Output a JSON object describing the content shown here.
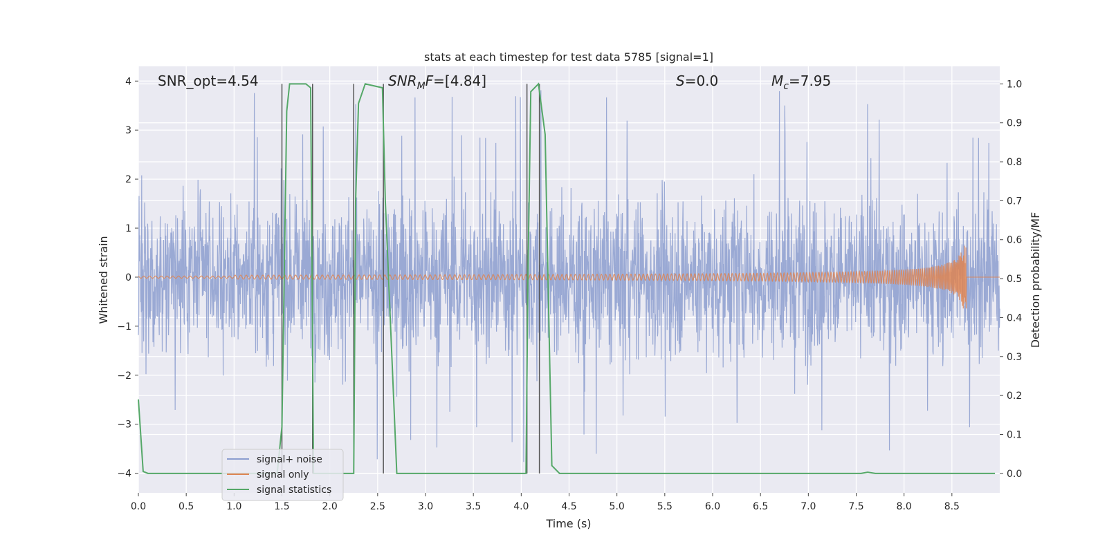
{
  "chart_data": {
    "type": "line",
    "title": "stats at each timestep for test data 5785 [signal=1]",
    "xlabel": "Time (s)",
    "ylabel_left": "Whitened strain",
    "ylabel_right": "Detection probability/MF",
    "xlim": [
      0,
      9.0
    ],
    "ylim_left": [
      -4.4,
      4.3
    ],
    "ylim_right": [
      -0.05,
      1.045
    ],
    "x_ticks": [
      "0.0",
      "0.5",
      "1.0",
      "1.5",
      "2.0",
      "2.5",
      "3.0",
      "3.5",
      "4.0",
      "4.5",
      "5.0",
      "5.5",
      "6.0",
      "6.5",
      "7.0",
      "7.5",
      "8.0",
      "8.5"
    ],
    "y_left_ticks": [
      "4",
      "3",
      "2",
      "1",
      "0",
      "−1",
      "−2",
      "−3",
      "−4"
    ],
    "y_right_ticks": [
      "1.0",
      "0.9",
      "0.8",
      "0.7",
      "0.6",
      "0.5",
      "0.4",
      "0.3",
      "0.2",
      "0.1",
      "0.0"
    ],
    "grid": true,
    "legend_position": "lower-left",
    "annotations": {
      "snr_opt": "SNR_opt=4.54",
      "snr_mf": "=[4.84]",
      "s_value": "=0.0",
      "mc_value": "=7.95"
    },
    "series": [
      {
        "name": "signal+ noise",
        "color": "#8c9ecf",
        "axis": "left",
        "description_note": "dense noisy strain, amplitude mostly within ±2.5, peaks to about ±3.9",
        "noise_amplitude": 1.2,
        "peak": 3.9
      },
      {
        "name": "signal only",
        "color": "#dd8452",
        "axis": "left",
        "chirp_end": 8.65,
        "chirp_peak": 0.65
      },
      {
        "name": "signal statistics",
        "color": "#55a868",
        "axis": "right",
        "x": [
          0.0,
          0.05,
          0.1,
          1.45,
          1.5,
          1.55,
          1.58,
          1.75,
          1.8,
          1.83,
          1.87,
          2.25,
          2.27,
          2.3,
          2.37,
          2.55,
          2.58,
          2.7,
          4.05,
          4.07,
          4.1,
          4.18,
          4.25,
          4.28,
          4.32,
          4.4,
          7.55,
          7.62,
          7.7,
          8.95
        ],
        "y": [
          0.19,
          0.005,
          0.0,
          0.0,
          0.12,
          0.93,
          1.0,
          1.0,
          0.99,
          0.0,
          0.0,
          0.0,
          0.7,
          0.95,
          1.0,
          0.99,
          0.7,
          0.0,
          0.0,
          0.5,
          0.98,
          1.0,
          0.87,
          0.5,
          0.02,
          0.0,
          0.0,
          0.003,
          0.0,
          0.0
        ]
      }
    ],
    "vertical_lines": [
      1.5,
      1.82,
      2.25,
      2.56,
      4.06,
      4.19
    ]
  }
}
